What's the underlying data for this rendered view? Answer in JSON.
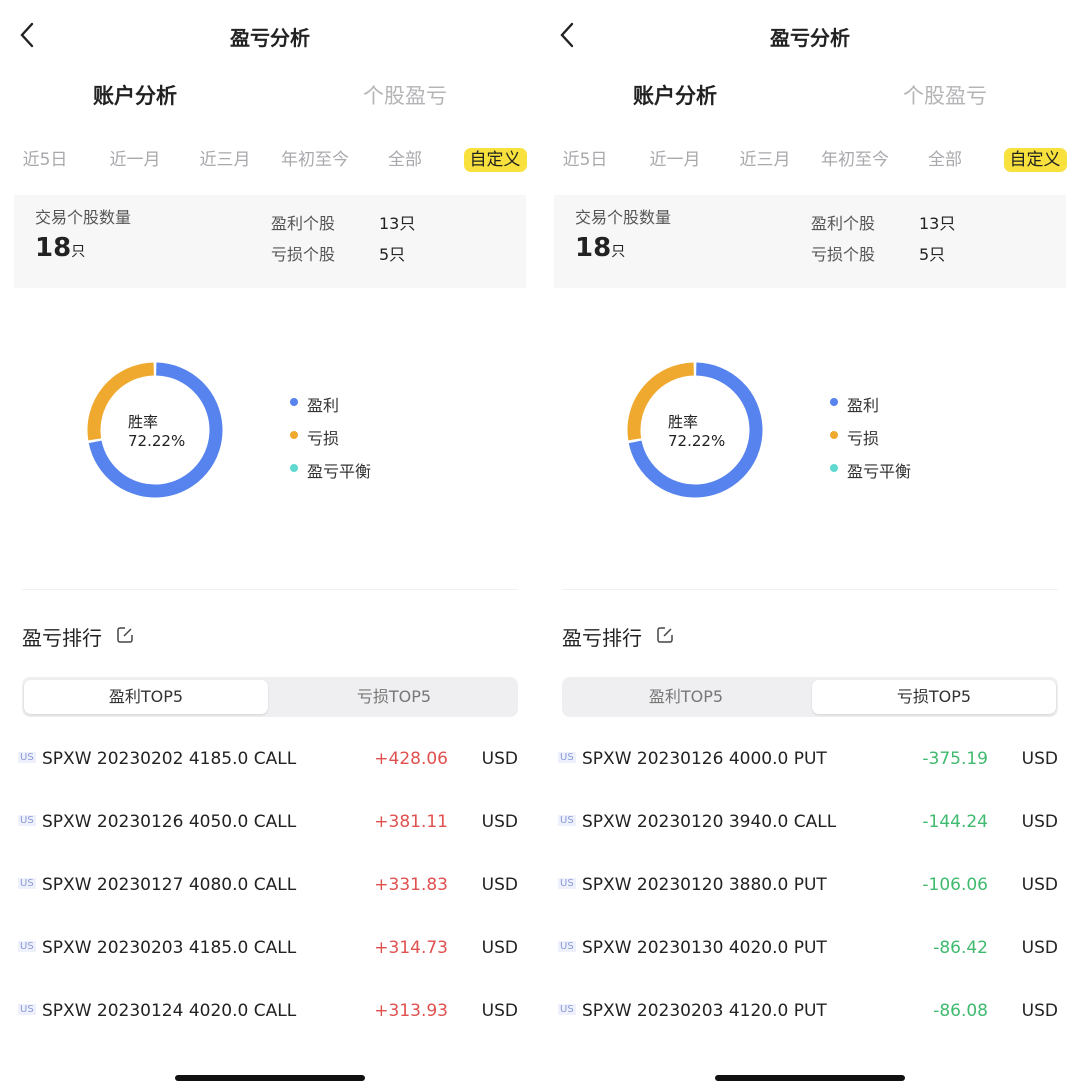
{
  "colors": {
    "win": "#5683ee",
    "loss": "#efa92f",
    "even": "#5fd8d0",
    "profit": "#e0504f",
    "lossText": "#3fba6e",
    "highlight": "#f8e13c"
  },
  "panels": [
    {
      "title": "盈亏分析",
      "tabs": [
        "账户分析",
        "个股盈亏"
      ],
      "periods": [
        "近5日",
        "近一月",
        "近三月",
        "年初至今",
        "全部",
        "自定义"
      ],
      "selected_period": 5,
      "stats": {
        "count_label": "交易个股数量",
        "count": "18",
        "unit": "只",
        "win_label": "盈利个股",
        "win_value": "13只",
        "loss_label": "亏损个股",
        "loss_value": "5只"
      },
      "donut": {
        "center_label": "胜率",
        "center_value": "72.22%",
        "win_pct": 72.22,
        "loss_pct": 27.78,
        "even_pct": 0
      },
      "legend": [
        "盈利",
        "亏损",
        "盈亏平衡"
      ],
      "ranking_title": "盈亏排行",
      "segments": [
        "盈利TOP5",
        "亏损TOP5"
      ],
      "active_segment": 0,
      "sign": "profit",
      "rows": [
        {
          "market": "US",
          "name": "SPXW 20230202 4185.0 CALL",
          "value": "+428.06",
          "currency": "USD"
        },
        {
          "market": "US",
          "name": "SPXW 20230126 4050.0 CALL",
          "value": "+381.11",
          "currency": "USD"
        },
        {
          "market": "US",
          "name": "SPXW 20230127 4080.0 CALL",
          "value": "+331.83",
          "currency": "USD"
        },
        {
          "market": "US",
          "name": "SPXW 20230203 4185.0 CALL",
          "value": "+314.73",
          "currency": "USD"
        },
        {
          "market": "US",
          "name": "SPXW 20230124 4020.0 CALL",
          "value": "+313.93",
          "currency": "USD"
        }
      ]
    },
    {
      "title": "盈亏分析",
      "tabs": [
        "账户分析",
        "个股盈亏"
      ],
      "periods": [
        "近5日",
        "近一月",
        "近三月",
        "年初至今",
        "全部",
        "自定义"
      ],
      "selected_period": 5,
      "stats": {
        "count_label": "交易个股数量",
        "count": "18",
        "unit": "只",
        "win_label": "盈利个股",
        "win_value": "13只",
        "loss_label": "亏损个股",
        "loss_value": "5只"
      },
      "donut": {
        "center_label": "胜率",
        "center_value": "72.22%",
        "win_pct": 72.22,
        "loss_pct": 27.78,
        "even_pct": 0
      },
      "legend": [
        "盈利",
        "亏损",
        "盈亏平衡"
      ],
      "ranking_title": "盈亏排行",
      "segments": [
        "盈利TOP5",
        "亏损TOP5"
      ],
      "active_segment": 1,
      "sign": "loss",
      "rows": [
        {
          "market": "US",
          "name": "SPXW 20230126 4000.0 PUT",
          "value": "-375.19",
          "currency": "USD"
        },
        {
          "market": "US",
          "name": "SPXW 20230120 3940.0 CALL",
          "value": "-144.24",
          "currency": "USD"
        },
        {
          "market": "US",
          "name": "SPXW 20230120 3880.0 PUT",
          "value": "-106.06",
          "currency": "USD"
        },
        {
          "market": "US",
          "name": "SPXW 20230130 4020.0 PUT",
          "value": "-86.42",
          "currency": "USD"
        },
        {
          "market": "US",
          "name": "SPXW 20230203 4120.0 PUT",
          "value": "-86.08",
          "currency": "USD"
        }
      ]
    }
  ]
}
